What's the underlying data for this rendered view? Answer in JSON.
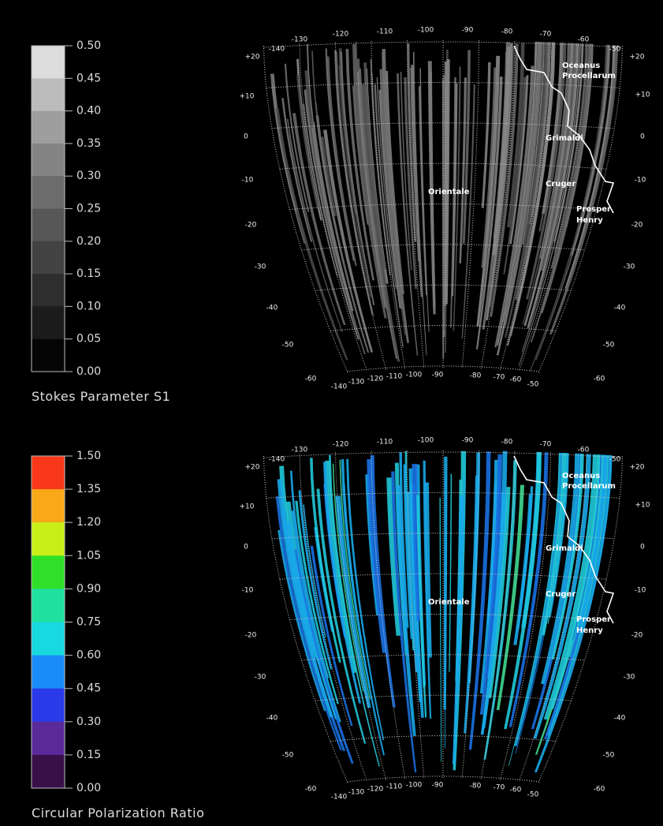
{
  "panels": [
    {
      "colorbar": {
        "title": "Stokes Parameter S1",
        "ticks": [
          "0.50",
          "0.45",
          "0.40",
          "0.35",
          "0.30",
          "0.25",
          "0.20",
          "0.15",
          "0.10",
          "0.05",
          "0.00"
        ]
      },
      "features": [
        {
          "lines": [
            "Oceanus",
            "Procellarum"
          ]
        },
        {
          "lines": [
            "Grimaldi"
          ]
        },
        {
          "lines": [
            "Cruger"
          ]
        },
        {
          "lines": [
            "Orientale"
          ]
        },
        {
          "lines": [
            "Prosper",
            "Henry"
          ]
        }
      ],
      "lon_top": [
        "-140",
        "-130",
        "-120",
        "-110",
        "-100",
        "-90",
        "-80",
        "-70",
        "-60",
        "-50"
      ],
      "lon_bottom": [
        "-140",
        "-130",
        "-120",
        "-110",
        "-100",
        "-90",
        "-80",
        "-70",
        "-60",
        "-50"
      ],
      "lat_left": [
        "+20",
        "+10",
        "0",
        "-10",
        "-20",
        "-30",
        "-40",
        "-50",
        "-60"
      ],
      "lat_right": [
        "+20",
        "+10",
        "0",
        "-10",
        "-20",
        "-30",
        "-40",
        "-50",
        "-60"
      ]
    },
    {
      "colorbar": {
        "title": "Circular Polarization Ratio",
        "ticks": [
          "1.50",
          "1.35",
          "1.20",
          "1.05",
          "0.90",
          "0.75",
          "0.60",
          "0.45",
          "0.30",
          "0.15",
          "0.00"
        ]
      },
      "features": [
        {
          "lines": [
            "Oceanus",
            "Procellarum"
          ]
        },
        {
          "lines": [
            "Grimaldi"
          ]
        },
        {
          "lines": [
            "Cruger"
          ]
        },
        {
          "lines": [
            "Orientale"
          ]
        },
        {
          "lines": [
            "Prosper",
            "Henry"
          ]
        }
      ],
      "lon_top": [
        "-140",
        "-130",
        "-120",
        "-110",
        "-100",
        "-90",
        "-80",
        "-70",
        "-60",
        "-50"
      ],
      "lon_bottom": [
        "-140",
        "-130",
        "-120",
        "-110",
        "-100",
        "-90",
        "-80",
        "-70",
        "-60",
        "-50"
      ],
      "lat_left": [
        "+20",
        "+10",
        "0",
        "-10",
        "-20",
        "-30",
        "-40",
        "-50",
        "-60"
      ],
      "lat_right": [
        "+20",
        "+10",
        "0",
        "-10",
        "-20",
        "-30",
        "-40",
        "-50",
        "-60"
      ]
    }
  ]
}
